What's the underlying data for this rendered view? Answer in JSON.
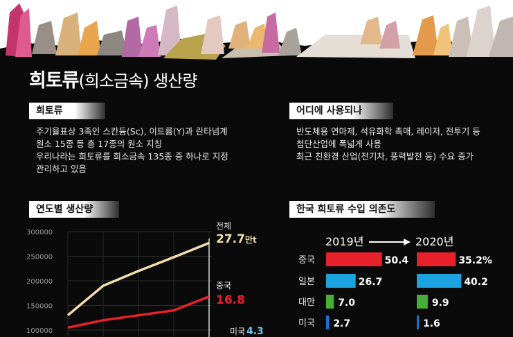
{
  "title": {
    "main": "희토류",
    "sub": "(희소금속) 생산량"
  },
  "section_left": {
    "heading": "희토류",
    "lines": [
      "주기율표상 3족인 스칸듐(Sc), 이트륨(Y)과 란타넘계",
      "원소 15종 등 총 17종의 원소 지칭",
      "우리나라는 희토류를 희소금속 135종 중 하나로 지정",
      "관리하고 있음"
    ]
  },
  "section_right": {
    "heading": "어디에 사용되나",
    "lines": [
      "반도체용 연마제, 석유화학 촉매, 레이저, 전투기 등",
      "첨단산업에 폭넓게 사용",
      "최근 친환경 산업(전기차, 풍력발전 등) 수요 증가"
    ]
  },
  "colors": {
    "total": "#f3dfae",
    "china": "#e8202a",
    "japan": "#1aa3de",
    "taiwan": "#45b035",
    "usa": "#1f6fd1"
  },
  "chart_data": [
    {
      "type": "line",
      "title": "연도별 생산량",
      "ylim": [
        100000,
        300000
      ],
      "yticks": [
        "300000",
        "250000",
        "200000",
        "150000",
        "100000"
      ],
      "series": [
        {
          "name": "전체",
          "values": [
            130000,
            190000,
            220000,
            248000,
            277000
          ],
          "label_value": "27.7",
          "label_unit": "만t",
          "color": "#f3dfae"
        },
        {
          "name": "중국",
          "values": [
            105000,
            120000,
            130000,
            140000,
            168000
          ],
          "label_value": "16.8",
          "color": "#e8202a"
        },
        {
          "name": "미국",
          "label_value": "4.3",
          "color": "#6fc3ee"
        }
      ]
    },
    {
      "type": "bar",
      "title": "한국 희토류 수입 의존도",
      "years": [
        "2019년",
        "2020년"
      ],
      "categories": [
        "중국",
        "일본",
        "대만",
        "미국"
      ],
      "series": [
        {
          "name": "2019년",
          "values": [
            50.4,
            26.7,
            7.0,
            2.7
          ],
          "labels": [
            "50.4",
            "26.7",
            "7.0",
            "2.7"
          ]
        },
        {
          "name": "2020년",
          "values": [
            35.2,
            40.2,
            9.9,
            1.6
          ],
          "labels": [
            "35.2%",
            "40.2",
            "9.9",
            "1.6"
          ]
        }
      ]
    }
  ]
}
